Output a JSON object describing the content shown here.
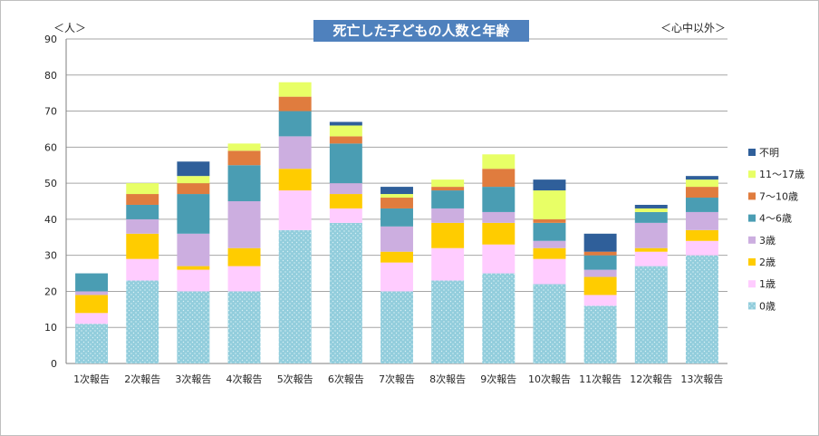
{
  "chart_data": {
    "type": "bar",
    "stacked": true,
    "title": "死亡した子どもの人数と年齢",
    "ylabel": "＜人＞",
    "note": "＜心中以外＞",
    "xlabel": "",
    "ylim": [
      0,
      90
    ],
    "yticks": [
      0,
      10,
      20,
      30,
      40,
      50,
      60,
      70,
      80,
      90
    ],
    "grid": true,
    "legend_position": "right",
    "categories": [
      "1次報告",
      "2次報告",
      "3次報告",
      "4次報告",
      "5次報告",
      "6次報告",
      "7次報告",
      "8次報告",
      "9次報告",
      "10次報告",
      "11次報告",
      "12次報告",
      "13次報告"
    ],
    "series": [
      {
        "name": "0歳",
        "color": "#92cddc",
        "pattern": "dots",
        "values": [
          11,
          23,
          20,
          20,
          37,
          39,
          20,
          23,
          25,
          22,
          16,
          27,
          30
        ]
      },
      {
        "name": "1歳",
        "color": "#ffccff",
        "values": [
          3,
          6,
          6,
          7,
          11,
          4,
          8,
          9,
          8,
          7,
          3,
          4,
          4
        ]
      },
      {
        "name": "2歳",
        "color": "#ffcc00",
        "values": [
          5,
          7,
          1,
          5,
          6,
          4,
          3,
          7,
          6,
          3,
          5,
          1,
          3
        ]
      },
      {
        "name": "3歳",
        "color": "#ccaee0",
        "values": [
          1,
          4,
          9,
          13,
          9,
          3,
          7,
          4,
          3,
          2,
          2,
          7,
          5
        ]
      },
      {
        "name": "4～6歳",
        "color": "#4a9db3",
        "values": [
          5,
          4,
          11,
          10,
          7,
          11,
          5,
          5,
          7,
          5,
          4,
          3,
          4
        ]
      },
      {
        "name": "7～10歳",
        "color": "#e07c3e",
        "values": [
          0,
          3,
          3,
          4,
          4,
          2,
          3,
          1,
          5,
          1,
          1,
          0,
          3
        ]
      },
      {
        "name": "11～17歳",
        "color": "#e8ff66",
        "values": [
          0,
          3,
          2,
          2,
          4,
          3,
          1,
          2,
          4,
          8,
          0,
          1,
          2
        ]
      },
      {
        "name": "不明",
        "color": "#2f5f9a",
        "values": [
          0,
          0,
          4,
          0,
          0,
          1,
          2,
          0,
          0,
          3,
          5,
          1,
          1
        ]
      }
    ]
  }
}
